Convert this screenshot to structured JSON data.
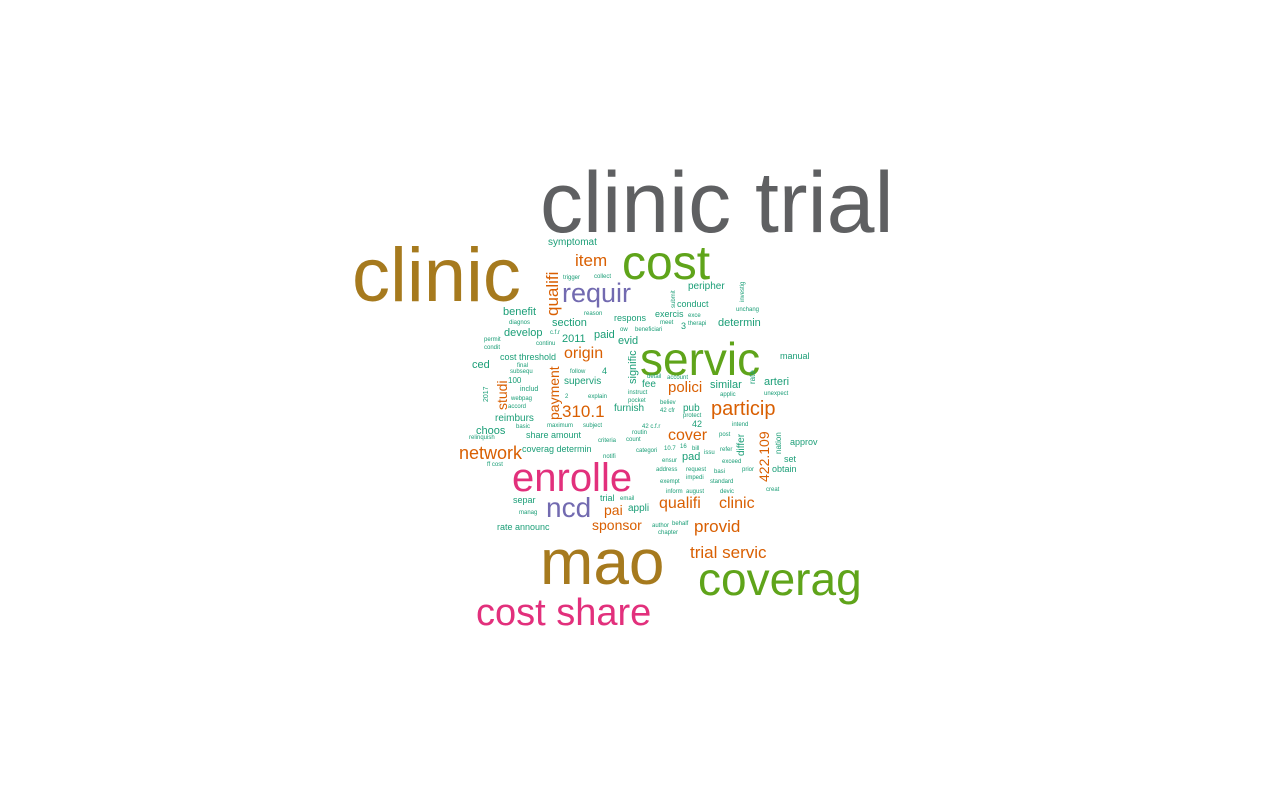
{
  "colors": {
    "gray": "#5f6062",
    "olive": "#a67a1e",
    "green": "#5fa41a",
    "purple": "#726ab0",
    "magenta": "#e2307c",
    "orange": "#d95f02",
    "teal": "#1b9e77"
  },
  "words": [
    {
      "text": "clinic trial",
      "color": "gray"
    },
    {
      "text": "clinic",
      "color": "olive"
    },
    {
      "text": "cost",
      "color": "green"
    },
    {
      "text": "servic",
      "color": "green"
    },
    {
      "text": "mao",
      "color": "olive"
    },
    {
      "text": "coverag",
      "color": "green"
    },
    {
      "text": "enrolle",
      "color": "magenta"
    },
    {
      "text": "cost share",
      "color": "magenta"
    },
    {
      "text": "requir",
      "color": "purple"
    },
    {
      "text": "ncd",
      "color": "purple"
    },
    {
      "text": "item",
      "color": "orange"
    },
    {
      "text": "qualifi",
      "color": "orange"
    },
    {
      "text": "origin",
      "color": "orange"
    },
    {
      "text": "particip",
      "color": "orange"
    },
    {
      "text": "310.1",
      "color": "orange"
    },
    {
      "text": "polici",
      "color": "orange"
    },
    {
      "text": "network",
      "color": "orange"
    },
    {
      "text": "cover",
      "color": "orange"
    },
    {
      "text": "qualifi",
      "color": "orange"
    },
    {
      "text": "clinic",
      "color": "orange"
    },
    {
      "text": "provid",
      "color": "orange"
    },
    {
      "text": "trial servic",
      "color": "orange"
    },
    {
      "text": "sponsor",
      "color": "orange"
    },
    {
      "text": "pai",
      "color": "orange"
    },
    {
      "text": "payment",
      "color": "orange"
    },
    {
      "text": "studi",
      "color": "orange"
    },
    {
      "text": "422.109",
      "color": "orange"
    },
    {
      "text": "symptomat",
      "color": "teal"
    },
    {
      "text": "peripher",
      "color": "teal"
    },
    {
      "text": "benefit",
      "color": "teal"
    },
    {
      "text": "section",
      "color": "teal"
    },
    {
      "text": "develop",
      "color": "teal"
    },
    {
      "text": "paid",
      "color": "teal"
    },
    {
      "text": "2011",
      "color": "teal"
    },
    {
      "text": "evid",
      "color": "teal"
    },
    {
      "text": "respons",
      "color": "teal"
    },
    {
      "text": "exercis",
      "color": "teal"
    },
    {
      "text": "conduct",
      "color": "teal"
    },
    {
      "text": "determin",
      "color": "teal"
    },
    {
      "text": "cost threshold",
      "color": "teal"
    },
    {
      "text": "ced",
      "color": "teal"
    },
    {
      "text": "manual",
      "color": "teal"
    },
    {
      "text": "supervis",
      "color": "teal"
    },
    {
      "text": "signific",
      "color": "teal"
    },
    {
      "text": "fee",
      "color": "teal"
    },
    {
      "text": "similar",
      "color": "teal"
    },
    {
      "text": "arteri",
      "color": "teal"
    },
    {
      "text": "furnish",
      "color": "teal"
    },
    {
      "text": "pub",
      "color": "teal"
    },
    {
      "text": "reimburs",
      "color": "teal"
    },
    {
      "text": "choos",
      "color": "teal"
    },
    {
      "text": "share amount",
      "color": "teal"
    },
    {
      "text": "42",
      "color": "teal"
    },
    {
      "text": "differ",
      "color": "teal"
    },
    {
      "text": "coverag determin",
      "color": "teal"
    },
    {
      "text": "pad",
      "color": "teal"
    },
    {
      "text": "nation",
      "color": "teal"
    },
    {
      "text": "approv",
      "color": "teal"
    },
    {
      "text": "set",
      "color": "teal"
    },
    {
      "text": "obtain",
      "color": "teal"
    },
    {
      "text": "trial",
      "color": "teal"
    },
    {
      "text": "separ",
      "color": "teal"
    },
    {
      "text": "appli",
      "color": "teal"
    },
    {
      "text": "rate announc",
      "color": "teal"
    },
    {
      "text": "100",
      "color": "teal"
    },
    {
      "text": "includ",
      "color": "teal"
    },
    {
      "text": "2017",
      "color": "teal"
    },
    {
      "text": "webpag",
      "color": "teal"
    },
    {
      "text": "accord",
      "color": "teal"
    },
    {
      "text": "basic",
      "color": "teal"
    },
    {
      "text": "relinquish",
      "color": "teal"
    },
    {
      "text": "ff cost",
      "color": "teal"
    },
    {
      "text": "diagnos",
      "color": "teal"
    },
    {
      "text": "permit",
      "color": "teal"
    },
    {
      "text": "condit",
      "color": "teal"
    },
    {
      "text": "final",
      "color": "teal"
    },
    {
      "text": "subsequ",
      "color": "teal"
    },
    {
      "text": "continu",
      "color": "teal"
    },
    {
      "text": "c.f.r",
      "color": "teal"
    },
    {
      "text": "trigger",
      "color": "teal"
    },
    {
      "text": "collect",
      "color": "teal"
    },
    {
      "text": "reason",
      "color": "teal"
    },
    {
      "text": "ow",
      "color": "teal"
    },
    {
      "text": "beneficiari",
      "color": "teal"
    },
    {
      "text": "meet",
      "color": "teal"
    },
    {
      "text": "exce",
      "color": "teal"
    },
    {
      "text": "therapi",
      "color": "teal"
    },
    {
      "text": "3",
      "color": "teal"
    },
    {
      "text": "unchang",
      "color": "teal"
    },
    {
      "text": "follow",
      "color": "teal"
    },
    {
      "text": "4",
      "color": "teal"
    },
    {
      "text": "detail",
      "color": "teal"
    },
    {
      "text": "account",
      "color": "teal"
    },
    {
      "text": "applic",
      "color": "teal"
    },
    {
      "text": "unexpect",
      "color": "teal"
    },
    {
      "text": "2",
      "color": "teal"
    },
    {
      "text": "explain",
      "color": "teal"
    },
    {
      "text": "instruct",
      "color": "teal"
    },
    {
      "text": "pocket",
      "color": "teal"
    },
    {
      "text": "believ",
      "color": "teal"
    },
    {
      "text": "protect",
      "color": "teal"
    },
    {
      "text": "42 cfr",
      "color": "teal"
    },
    {
      "text": "maximum",
      "color": "teal"
    },
    {
      "text": "subject",
      "color": "teal"
    },
    {
      "text": "routin",
      "color": "teal"
    },
    {
      "text": "42 c.f.r",
      "color": "teal"
    },
    {
      "text": "intend",
      "color": "teal"
    },
    {
      "text": "post",
      "color": "teal"
    },
    {
      "text": "refer",
      "color": "teal"
    },
    {
      "text": "criteria",
      "color": "teal"
    },
    {
      "text": "count",
      "color": "teal"
    },
    {
      "text": "categori",
      "color": "teal"
    },
    {
      "text": "10.7",
      "color": "teal"
    },
    {
      "text": "16",
      "color": "teal"
    },
    {
      "text": "bill",
      "color": "teal"
    },
    {
      "text": "issu",
      "color": "teal"
    },
    {
      "text": "notifi",
      "color": "teal"
    },
    {
      "text": "ensur",
      "color": "teal"
    },
    {
      "text": "exceed",
      "color": "teal"
    },
    {
      "text": "prior",
      "color": "teal"
    },
    {
      "text": "address",
      "color": "teal"
    },
    {
      "text": "request",
      "color": "teal"
    },
    {
      "text": "basi",
      "color": "teal"
    },
    {
      "text": "exempt",
      "color": "teal"
    },
    {
      "text": "impedi",
      "color": "teal"
    },
    {
      "text": "standard",
      "color": "teal"
    },
    {
      "text": "inform",
      "color": "teal"
    },
    {
      "text": "august",
      "color": "teal"
    },
    {
      "text": "devic",
      "color": "teal"
    },
    {
      "text": "creat",
      "color": "teal"
    },
    {
      "text": "email",
      "color": "teal"
    },
    {
      "text": "manag",
      "color": "teal"
    },
    {
      "text": "author",
      "color": "teal"
    },
    {
      "text": "behalf",
      "color": "teal"
    },
    {
      "text": "chapter",
      "color": "teal"
    },
    {
      "text": "rate",
      "color": "teal"
    },
    {
      "text": "investig",
      "color": "teal"
    },
    {
      "text": "submit",
      "color": "teal"
    }
  ]
}
